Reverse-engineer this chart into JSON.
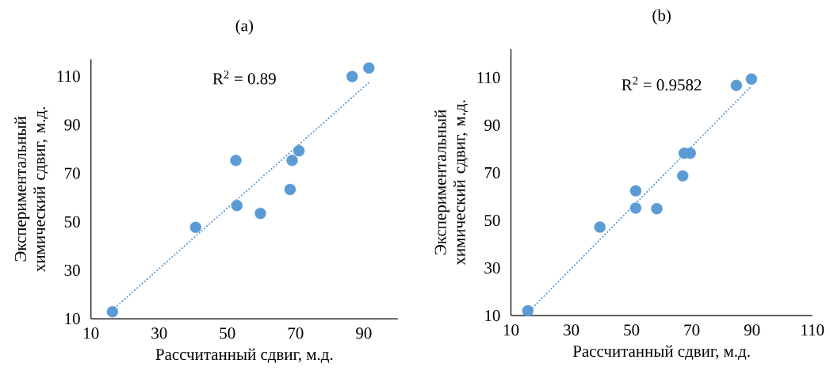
{
  "chart_data": [
    {
      "type": "scatter",
      "title": "(a)",
      "xlabel": "Рассчитанный сдвиг, м.д.",
      "ylabel": "Экспериментальный химический сдвиг, м.д.",
      "annotations": [
        "R$^{2}$ = 0.89"
      ],
      "xlim": [
        10,
        100
      ],
      "ylim": [
        10,
        117
      ],
      "xticks": [
        10,
        30,
        50,
        70,
        90
      ],
      "yticks": [
        10,
        30,
        50,
        70,
        90,
        110
      ],
      "grid": false,
      "series": [
        {
          "type": "scatter",
          "marker": "circle",
          "color": "#5b9bd5",
          "x": [
            16.3,
            40.7,
            52.5,
            52.8,
            59.7,
            68.4,
            69.0,
            71.0,
            86.6,
            91.5
          ],
          "values": [
            12.9,
            47.7,
            75.3,
            56.7,
            53.4,
            63.3,
            75.3,
            79.3,
            109.9,
            113.4
          ]
        },
        {
          "type": "line",
          "color": "#5b9bd5",
          "line_style": "dotted",
          "marker": "none",
          "x": [
            16.3,
            91.5
          ],
          "values": [
            13.6,
            107.4
          ]
        }
      ]
    },
    {
      "type": "scatter",
      "title": "(b)",
      "xlabel": "Рассчитанный сдвиг, м.д.",
      "ylabel": "Экспериментальный химический сдвиг, м.д.",
      "annotations": [
        "R$^{2}$ = 0.9582"
      ],
      "xlim": [
        10,
        110
      ],
      "ylim": [
        10,
        122
      ],
      "xticks": [
        10,
        30,
        50,
        70,
        90,
        110
      ],
      "yticks": [
        10,
        30,
        50,
        70,
        90,
        110
      ],
      "grid": false,
      "series": [
        {
          "type": "scatter",
          "marker": "circle",
          "color": "#5b9bd5",
          "x": [
            15.6,
            39.5,
            51.4,
            51.4,
            58.4,
            67.0,
            67.5,
            69.5,
            84.8,
            89.8
          ],
          "values": [
            12.0,
            47.2,
            62.4,
            55.2,
            54.9,
            68.7,
            78.2,
            78.2,
            106.7,
            109.4
          ]
        },
        {
          "type": "line",
          "color": "#5b9bd5",
          "line_style": "dotted",
          "marker": "none",
          "x": [
            17.2,
            89.8
          ],
          "values": [
            13.3,
            106.4
          ]
        }
      ]
    }
  ]
}
